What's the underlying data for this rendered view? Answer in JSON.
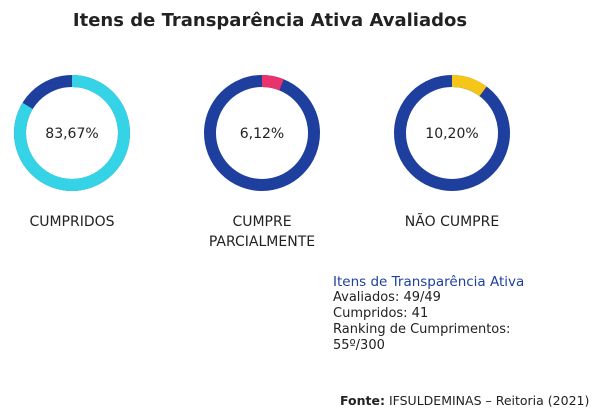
{
  "title": "Itens de Transparência Ativa Avaliados",
  "chart_data": [
    {
      "type": "donut",
      "categories": [
        "CUMPRIDOS"
      ],
      "values": [
        83.67
      ],
      "value_labels": [
        "83,67%"
      ],
      "color": "#35d3e6",
      "track_color": "#1f3f9e"
    },
    {
      "type": "donut",
      "categories": [
        "CUMPRE PARCIALMENTE"
      ],
      "values": [
        6.12
      ],
      "value_labels": [
        "6,12%"
      ],
      "color": "#e8336d",
      "track_color": "#1f3f9e"
    },
    {
      "type": "donut",
      "categories": [
        "NÃO CUMPRE"
      ],
      "values": [
        10.2
      ],
      "value_labels": [
        "10,20%"
      ],
      "color": "#f5c518",
      "track_color": "#1f3f9e"
    }
  ],
  "info": {
    "heading": "Itens de Transparência Ativa",
    "lines": [
      "Avaliados: 49/49",
      "Cumpridos: 41",
      "Ranking de Cumprimentos:",
      "55º/300"
    ]
  },
  "source": {
    "label": "Fonte:",
    "text": "IFSULDEMINAS – Reitoria (2021)"
  }
}
